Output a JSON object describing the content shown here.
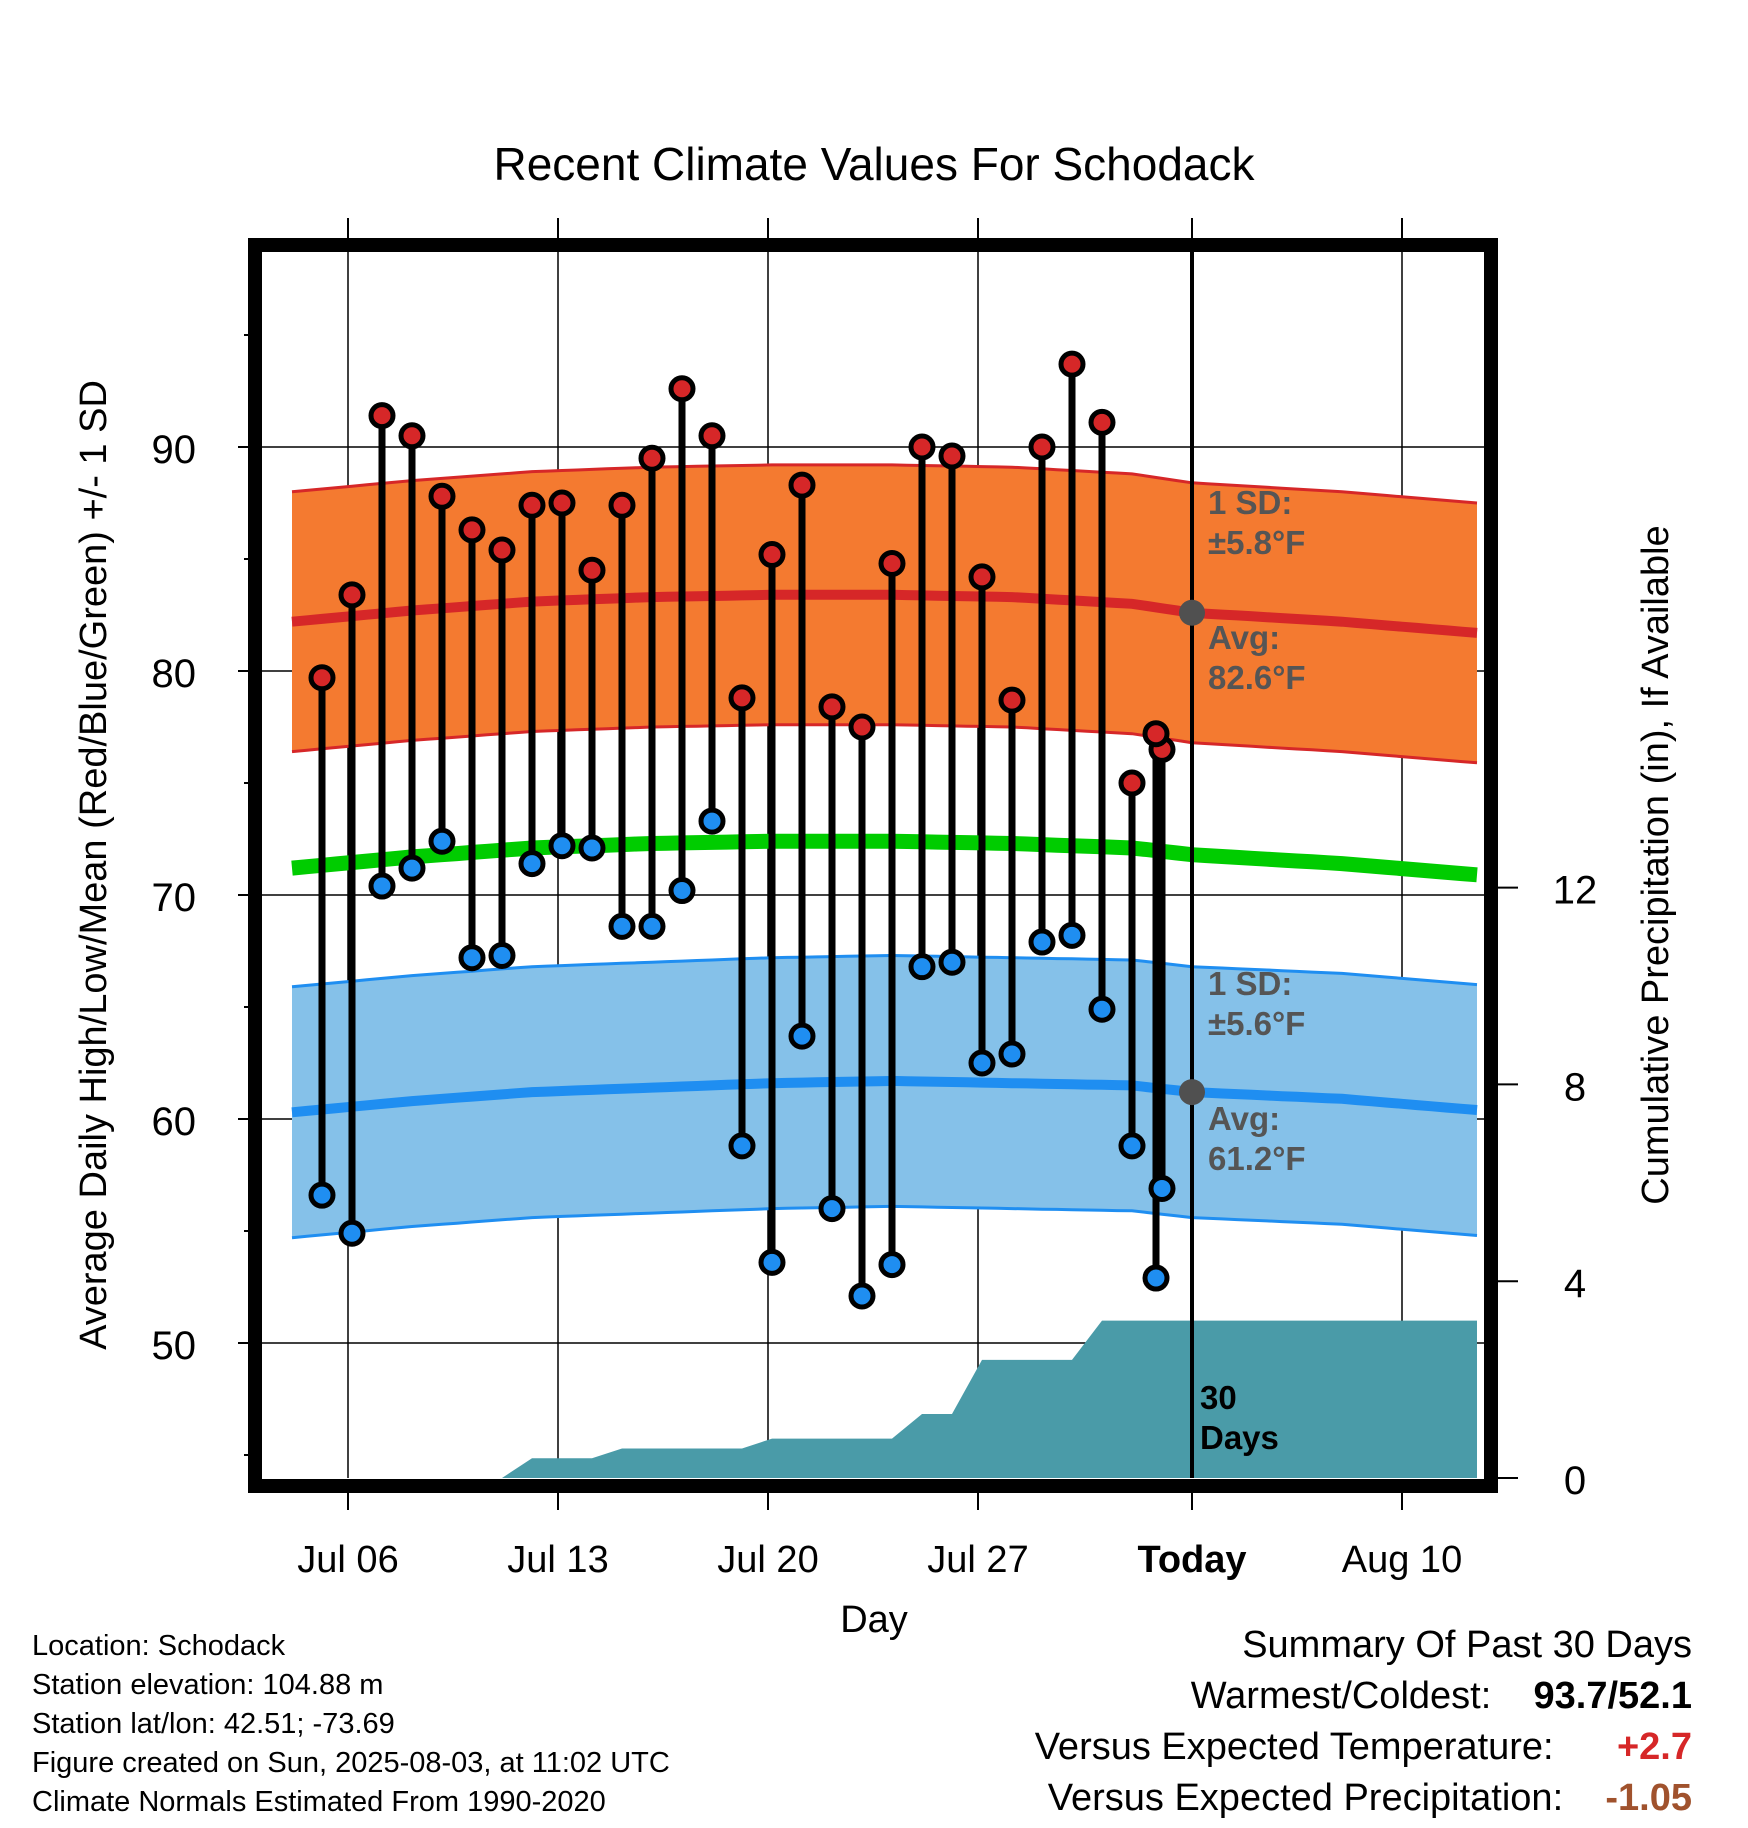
{
  "chart_data": {
    "type": "line",
    "title": "Recent Climate Values For Schodack",
    "xlabel": "Day",
    "ylabel": "Average Daily High/Low/Mean (Red/Blue/Green) +/- 1 SD",
    "y2label": "Cumulative Precipitation (in), If Available",
    "x_tick_labels": [
      "Jul 06",
      "Jul 13",
      "Jul 20",
      "Jul 27",
      "Today",
      "Aug 10"
    ],
    "y_ticks": [
      50,
      60,
      70,
      80,
      90
    ],
    "y2_ticks": [
      0,
      4,
      8,
      12
    ],
    "ylim": [
      44.5,
      98.5
    ],
    "y2lim": [
      0,
      12
    ],
    "xlim_days": [
      -30,
      10
    ],
    "grid": true,
    "today_marker_label": "30\nDays",
    "normals": {
      "high_avg": [
        82.2,
        82.7,
        83.1,
        83.3,
        83.4,
        83.4,
        83.3,
        83.0,
        82.6,
        82.2,
        81.7
      ],
      "high_sd": 5.8,
      "mean_avg": [
        71.2,
        71.7,
        72.1,
        72.3,
        72.4,
        72.4,
        72.3,
        72.1,
        71.8,
        71.4,
        70.9
      ],
      "low_avg": [
        60.3,
        60.8,
        61.2,
        61.4,
        61.6,
        61.7,
        61.6,
        61.5,
        61.2,
        60.9,
        60.4
      ],
      "low_sd": 5.6,
      "days": [
        -30,
        -26,
        -22,
        -18,
        -14,
        -10,
        -6,
        -2,
        0,
        5,
        9.5
      ]
    },
    "annotations": {
      "high_sd": "1 SD:\n±5.8°F",
      "high_avg": "Avg:\n82.6°F",
      "low_sd": "1 SD:\n±5.6°F",
      "low_avg": "Avg:\n61.2°F"
    },
    "series": [
      {
        "name": "High",
        "color": "#d62728",
        "days": [
          -29,
          -28,
          -27,
          -26,
          -25,
          -24,
          -23,
          -22,
          -21,
          -20,
          -19,
          -18,
          -17,
          -16,
          -15,
          -14,
          -13,
          -12,
          -11,
          -10,
          -9,
          -8,
          -7,
          -6,
          -5,
          -4,
          -3,
          -2,
          -1
        ],
        "values": [
          79.7,
          83.4,
          91.4,
          90.5,
          87.8,
          86.3,
          85.4,
          87.4,
          87.5,
          84.5,
          87.4,
          89.5,
          92.6,
          90.5,
          78.8,
          85.2,
          88.3,
          78.4,
          77.5,
          84.8,
          90.0,
          89.6,
          84.2,
          78.7,
          90.0,
          93.7,
          91.1,
          75.0,
          76.5
        ]
      },
      {
        "name": "Low",
        "color": "#1f8ef1",
        "days": [
          -29,
          -28,
          -27,
          -26,
          -25,
          -24,
          -23,
          -22,
          -21,
          -20,
          -19,
          -18,
          -17,
          -16,
          -15,
          -14,
          -13,
          -12,
          -11,
          -10,
          -9,
          -8,
          -7,
          -6,
          -5,
          -4,
          -3,
          -2,
          -1
        ],
        "values": [
          56.6,
          54.9,
          70.4,
          71.2,
          72.4,
          67.2,
          67.3,
          71.4,
          72.2,
          72.1,
          68.6,
          68.6,
          70.2,
          73.3,
          58.8,
          53.6,
          63.7,
          56.0,
          52.1,
          53.5,
          66.8,
          67.0,
          62.5,
          62.9,
          67.9,
          68.2,
          64.9,
          58.8,
          56.9
        ]
      },
      {
        "name": "Precipitation",
        "color": "#4a9ba8",
        "days": [
          -30,
          -25,
          -24,
          -23,
          -22,
          -21,
          -20,
          -19,
          -18,
          -17,
          -16,
          -15,
          -14,
          -13,
          -12,
          -11,
          -10,
          -9,
          -8,
          -7,
          -6,
          -5,
          -4,
          -3,
          -2,
          -1,
          0,
          10
        ],
        "values": [
          0,
          0,
          0,
          0,
          0.4,
          0.4,
          0.4,
          0.6,
          0.6,
          0.6,
          0.6,
          0.6,
          0.8,
          0.8,
          0.8,
          0.8,
          0.8,
          1.3,
          1.3,
          2.4,
          2.4,
          2.4,
          2.4,
          3.2,
          3.2,
          3.2,
          3.2,
          3.2
        ]
      }
    ]
  },
  "extra_high": {
    "day": -1.2,
    "value": 77.2
  },
  "extra_low": {
    "day": -1.2,
    "value": 52.9
  },
  "footer": {
    "location": "Location: Schodack",
    "elevation": "Station elevation: 104.88 m",
    "latlon": "Station lat/lon: 42.51; -73.69",
    "created": "Figure created on Sun, 2025-08-03, at 11:02 UTC",
    "normals": "Climate Normals Estimated From 1990-2020"
  },
  "summary": {
    "title": "Summary Of Past 30 Days",
    "warm_label": "Warmest/Coldest:",
    "warm_value": "93.7/52.1",
    "temp_label": "Versus Expected Temperature:",
    "temp_value": "+2.7",
    "temp_color": "#d62728",
    "precip_label": "Versus Expected Precipitation:",
    "precip_value": "-1.05",
    "precip_color": "#a0522d"
  }
}
